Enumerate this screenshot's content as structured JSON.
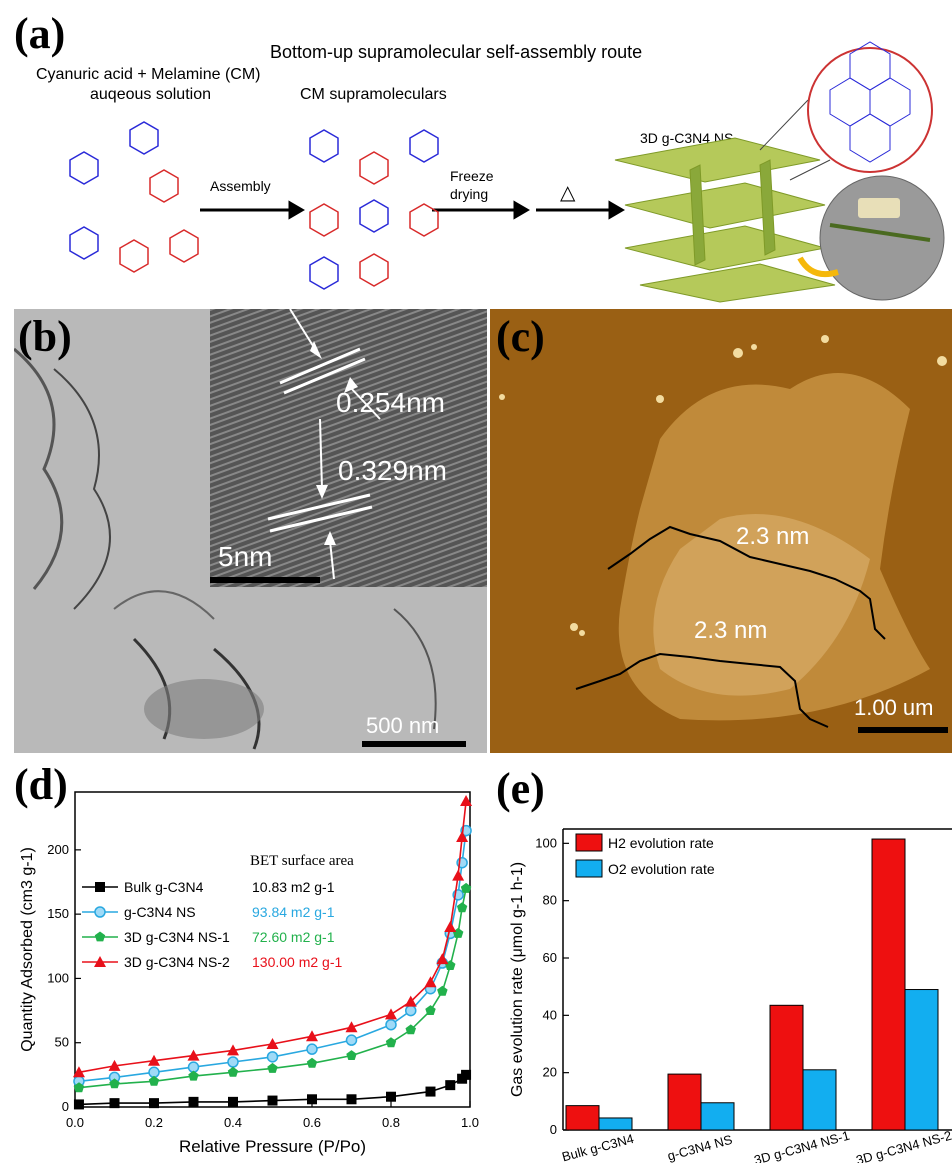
{
  "panel_a": {
    "label": "(a)",
    "title": "Bottom-up supramolecular self-assembly route",
    "cm_label_1": "Cyanuric acid + Melamine (CM)",
    "cm_label_2": "auqeous solution",
    "supra_label": "CM supramoleculars",
    "assembly_label": "Assembly",
    "freeze_1": "Freeze",
    "freeze_2": "drying",
    "heat_symbol": "△",
    "product_label": "3D g-C3N4 NS"
  },
  "panel_b": {
    "label": "(b)",
    "spacing_1": "0.254nm",
    "spacing_2": "0.329nm",
    "inset_scale": "5nm",
    "scale": "500 nm"
  },
  "panel_c": {
    "label": "(c)",
    "height_1": "2.3 nm",
    "height_2": "2.3 nm",
    "scale": "1.00 um"
  },
  "panel_d_meta": {
    "label": "(d)",
    "bet_header": "BET surface area",
    "legend": [
      {
        "name": "Bulk g-C3N4",
        "bet": "10.83 m2 g-1",
        "color": "#000000",
        "marker": "square"
      },
      {
        "name": "g-C3N4 NS",
        "bet": "93.84 m2 g-1",
        "color": "#29a8e0",
        "marker": "circle"
      },
      {
        "name": "3D g-C3N4 NS-1",
        "bet": "72.60 m2 g-1",
        "color": "#22b14c",
        "marker": "pentagon"
      },
      {
        "name": "3D g-C3N4 NS-2",
        "bet": "130.00 m2 g-1",
        "color": "#e8101a",
        "marker": "triangle"
      }
    ]
  },
  "panel_e_meta": {
    "label": "(e)",
    "legend": [
      {
        "name": "H2 evolution rate",
        "color": "#ee1010"
      },
      {
        "name": "O2 evolution rate",
        "color": "#12aef0"
      }
    ]
  },
  "chart_data": [
    {
      "type": "line",
      "xlabel": "Relative Pressure (P/Po)",
      "ylabel": "Quantity Adsorbed (cm3 g-1)",
      "xlim": [
        0.0,
        1.0
      ],
      "ylim": [
        0,
        245
      ],
      "xticks": [
        "0.0",
        "0.2",
        "0.4",
        "0.6",
        "0.8",
        "1.0"
      ],
      "yticks": [
        "0",
        "50",
        "100",
        "150",
        "200"
      ],
      "series": [
        {
          "name": "Bulk g-C3N4",
          "x": [
            0.01,
            0.1,
            0.2,
            0.3,
            0.4,
            0.5,
            0.6,
            0.7,
            0.8,
            0.9,
            0.95,
            0.98,
            0.99
          ],
          "y": [
            2,
            3,
            3,
            4,
            4,
            5,
            6,
            6,
            8,
            12,
            17,
            22,
            25
          ]
        },
        {
          "name": "g-C3N4 NS",
          "x": [
            0.01,
            0.1,
            0.2,
            0.3,
            0.4,
            0.5,
            0.6,
            0.7,
            0.8,
            0.85,
            0.9,
            0.93,
            0.95,
            0.97,
            0.98,
            0.99
          ],
          "y": [
            20,
            23,
            27,
            31,
            35,
            39,
            45,
            52,
            64,
            75,
            92,
            112,
            135,
            165,
            190,
            215
          ]
        },
        {
          "name": "3D g-C3N4 NS-1",
          "x": [
            0.01,
            0.1,
            0.2,
            0.3,
            0.4,
            0.5,
            0.6,
            0.7,
            0.8,
            0.85,
            0.9,
            0.93,
            0.95,
            0.97,
            0.98,
            0.99
          ],
          "y": [
            15,
            18,
            20,
            24,
            27,
            30,
            34,
            40,
            50,
            60,
            75,
            90,
            110,
            135,
            155,
            170
          ]
        },
        {
          "name": "3D g-C3N4 NS-2",
          "x": [
            0.01,
            0.1,
            0.2,
            0.3,
            0.4,
            0.5,
            0.6,
            0.7,
            0.8,
            0.85,
            0.9,
            0.93,
            0.95,
            0.97,
            0.98,
            0.99
          ],
          "y": [
            27,
            32,
            36,
            40,
            44,
            49,
            55,
            62,
            72,
            82,
            97,
            115,
            140,
            180,
            210,
            238
          ]
        }
      ]
    },
    {
      "type": "bar",
      "ylabel": "Gas evolution rate (μmol g-1 h-1)",
      "categories": [
        "Bulk g-C3N4",
        "g-C3N4 NS",
        "3D g-C3N4 NS-1",
        "3D g-C3N4 NS-2"
      ],
      "ylim": [
        0,
        105
      ],
      "yticks": [
        "0",
        "20",
        "40",
        "60",
        "80",
        "100"
      ],
      "series": [
        {
          "name": "H2 evolution rate",
          "values": [
            8.5,
            19.5,
            43.5,
            101.5
          ]
        },
        {
          "name": "O2 evolution rate",
          "values": [
            4.2,
            9.5,
            21.0,
            49.0
          ]
        }
      ]
    }
  ]
}
